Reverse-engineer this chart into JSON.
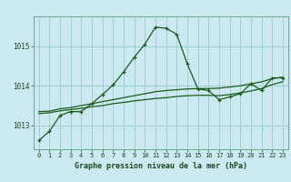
{
  "title": "Graphe pression niveau de la mer (hPa)",
  "bg_color": "#cce8f0",
  "grid_color": "#99cccc",
  "line_actual_color": "#1a5c1a",
  "line_avg1_color": "#1a5c1a",
  "line_avg2_color": "#1a5c1a",
  "x": [
    0,
    1,
    2,
    3,
    4,
    5,
    6,
    7,
    8,
    9,
    10,
    11,
    12,
    13,
    14,
    15,
    16,
    17,
    18,
    19,
    20,
    21,
    22,
    23
  ],
  "y_actual": [
    1012.62,
    1012.85,
    1013.25,
    1013.35,
    1013.35,
    1013.55,
    1013.78,
    1014.02,
    1014.35,
    1014.72,
    1015.05,
    1015.48,
    1015.45,
    1015.3,
    1014.55,
    1013.92,
    1013.88,
    1013.65,
    1013.72,
    1013.8,
    1014.05,
    1013.88,
    1014.2,
    1014.2
  ],
  "y_avg_high": [
    1013.35,
    1013.36,
    1013.42,
    1013.45,
    1013.5,
    1013.55,
    1013.6,
    1013.65,
    1013.7,
    1013.75,
    1013.8,
    1013.85,
    1013.88,
    1013.9,
    1013.92,
    1013.93,
    1013.93,
    1013.94,
    1013.97,
    1014.0,
    1014.05,
    1014.1,
    1014.18,
    1014.22
  ],
  "y_avg_low": [
    1013.3,
    1013.32,
    1013.37,
    1013.4,
    1013.43,
    1013.47,
    1013.5,
    1013.55,
    1013.58,
    1013.62,
    1013.65,
    1013.68,
    1013.7,
    1013.73,
    1013.75,
    1013.76,
    1013.76,
    1013.75,
    1013.78,
    1013.82,
    1013.87,
    1013.93,
    1014.03,
    1014.1
  ],
  "ylim": [
    1012.4,
    1015.75
  ],
  "yticks": [
    1013,
    1014,
    1015
  ],
  "xticks": [
    0,
    1,
    2,
    3,
    4,
    5,
    6,
    7,
    8,
    9,
    10,
    11,
    12,
    13,
    14,
    15,
    16,
    17,
    18,
    19,
    20,
    21,
    22,
    23
  ]
}
